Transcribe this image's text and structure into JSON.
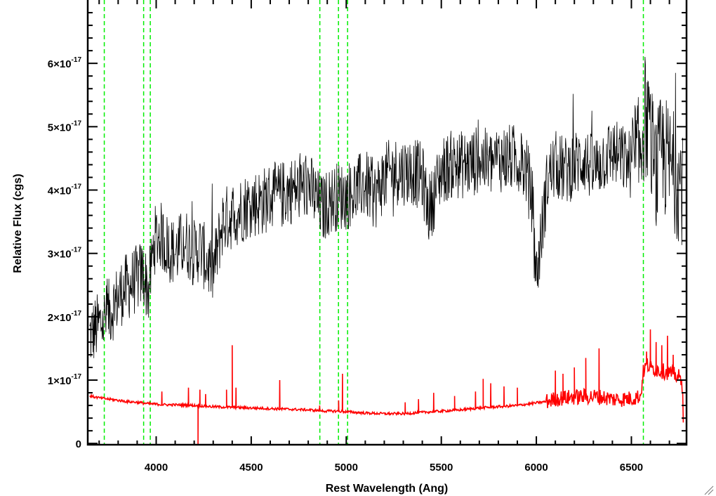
{
  "chart_data": {
    "type": "line",
    "title": "",
    "xlabel": "Rest Wavelength (Ang)",
    "ylabel": "Relative Flux (cgs)",
    "xlim": [
      3640,
      6790
    ],
    "ylim": [
      -2e-19,
      7e-17
    ],
    "x_ticks": [
      {
        "value": 4000,
        "label": "4000"
      },
      {
        "value": 4500,
        "label": "4500"
      },
      {
        "value": 5000,
        "label": "5000"
      },
      {
        "value": 5500,
        "label": "5500"
      },
      {
        "value": 6000,
        "label": "6000"
      },
      {
        "value": 6500,
        "label": "6500"
      }
    ],
    "y_ticks": [
      {
        "value": 0,
        "label": "0"
      },
      {
        "value": 1e-17,
        "label": "1×10",
        "exp": "-17"
      },
      {
        "value": 2e-17,
        "label": "2×10",
        "exp": "-17"
      },
      {
        "value": 3e-17,
        "label": "3×10",
        "exp": "-17"
      },
      {
        "value": 4e-17,
        "label": "4×10",
        "exp": "-17"
      },
      {
        "value": 5e-17,
        "label": "5×10",
        "exp": "-17"
      },
      {
        "value": 6e-17,
        "label": "6×10",
        "exp": "-17"
      }
    ],
    "grid": false,
    "series": [
      {
        "color": "#000000",
        "description": "observed spectrum (noisy)",
        "x": [
          3650,
          3680,
          3710,
          3740,
          3780,
          3820,
          3860,
          3900,
          3930,
          3960,
          3990,
          4020,
          4060,
          4100,
          4150,
          4200,
          4230,
          4260,
          4300,
          4350,
          4400,
          4450,
          4500,
          4550,
          4600,
          4650,
          4700,
          4750,
          4800,
          4850,
          4880,
          4900,
          4950,
          5000,
          5050,
          5100,
          5150,
          5200,
          5250,
          5300,
          5350,
          5400,
          5430,
          5450,
          5500,
          5550,
          5600,
          5650,
          5700,
          5750,
          5800,
          5850,
          5900,
          5950,
          5980,
          6000,
          6030,
          6060,
          6100,
          6150,
          6200,
          6250,
          6300,
          6350,
          6400,
          6450,
          6500,
          6540,
          6570,
          6600,
          6630,
          6660,
          6700,
          6740,
          6770
        ],
        "y": [
          1.7e-17,
          1.8e-17,
          1.9e-17,
          2e-17,
          2.2e-17,
          2.4e-17,
          2.5e-17,
          2.6e-17,
          2.7e-17,
          2.4e-17,
          3.2e-17,
          3.3e-17,
          3.1e-17,
          3e-17,
          3.2e-17,
          3e-17,
          3.1e-17,
          2.9e-17,
          2.7e-17,
          3.5e-17,
          3.6e-17,
          3.7e-17,
          3.8e-17,
          3.8e-17,
          3.9e-17,
          3.9e-17,
          4e-17,
          4e-17,
          4.1e-17,
          3.8e-17,
          3.7e-17,
          3.8e-17,
          3.9e-17,
          3.9e-17,
          4e-17,
          4.1e-17,
          3.9e-17,
          4.2e-17,
          4.3e-17,
          4.3e-17,
          4.3e-17,
          4.2e-17,
          3.7e-17,
          3.8e-17,
          4.3e-17,
          4.4e-17,
          4.4e-17,
          4.4e-17,
          4.5e-17,
          4.4e-17,
          4.5e-17,
          4.5e-17,
          4.5e-17,
          4.3e-17,
          3.8e-17,
          2.6e-17,
          3.4e-17,
          4.2e-17,
          4.4e-17,
          4.3e-17,
          4.4e-17,
          4.5e-17,
          4.3e-17,
          4.5e-17,
          4.6e-17,
          4.5e-17,
          4.4e-17,
          4.5e-17,
          5.2e-17,
          4.8e-17,
          4.2e-17,
          4.6e-17,
          4.4e-17,
          4.2e-17,
          4.1e-17
        ],
        "noise_amp": 5.5e-18
      },
      {
        "color": "#ff0000",
        "description": "error spectrum",
        "x": [
          3650,
          3700,
          3750,
          3800,
          3850,
          3900,
          3950,
          4000,
          4050,
          4100,
          4200,
          4300,
          4400,
          4500,
          4600,
          4700,
          4800,
          4850,
          4900,
          4950,
          5000,
          5050,
          5100,
          5200,
          5300,
          5400,
          5500,
          5600,
          5700,
          5800,
          5900,
          5950,
          6000,
          6050,
          6100,
          6150,
          6200,
          6250,
          6300,
          6350,
          6400,
          6450,
          6500,
          6550,
          6560,
          6580,
          6600,
          6650,
          6700,
          6750,
          6770,
          6775
        ],
        "y": [
          7.5e-18,
          7.2e-18,
          7e-18,
          6.8e-18,
          6.6e-18,
          6.5e-18,
          6.3e-18,
          6.2e-18,
          6.1e-18,
          6.1e-18,
          6e-18,
          5.8e-18,
          5.7e-18,
          5.6e-18,
          5.5e-18,
          5.4e-18,
          5.3e-18,
          5.2e-18,
          5.1e-18,
          5.1e-18,
          5e-18,
          4.9e-18,
          4.8e-18,
          4.7e-18,
          4.7e-18,
          4.9e-18,
          5.1e-18,
          5.3e-18,
          5.6e-18,
          5.8e-18,
          6e-18,
          6.2e-18,
          6.4e-18,
          6.6e-18,
          7e-18,
          7.2e-18,
          7.3e-18,
          7.4e-18,
          7.4e-18,
          7.3e-18,
          7e-18,
          7e-18,
          7.1e-18,
          7.5e-18,
          1.1e-17,
          1.25e-17,
          1.2e-17,
          1.15e-17,
          1.12e-17,
          1.05e-17,
          9e-18,
          -2e-19
        ],
        "spikes": [
          {
            "x": 4030,
            "y": 8.2e-18
          },
          {
            "x": 4170,
            "y": 8.8e-18
          },
          {
            "x": 4220,
            "y": -2e-19
          },
          {
            "x": 4230,
            "y": 8.5e-18
          },
          {
            "x": 4260,
            "y": 7.8e-18
          },
          {
            "x": 4370,
            "y": 8.5e-18
          },
          {
            "x": 4400,
            "y": 1.55e-17
          },
          {
            "x": 4420,
            "y": 8.8e-18
          },
          {
            "x": 4650,
            "y": 1e-17
          },
          {
            "x": 4860,
            "y": 6e-18
          },
          {
            "x": 4960,
            "y": 6.8e-18
          },
          {
            "x": 4980,
            "y": 1.1e-17
          },
          {
            "x": 5310,
            "y": 6.5e-18
          },
          {
            "x": 5380,
            "y": 7e-18
          },
          {
            "x": 5460,
            "y": 8e-18
          },
          {
            "x": 5570,
            "y": 7.5e-18
          },
          {
            "x": 5680,
            "y": 8.2e-18
          },
          {
            "x": 5720,
            "y": 1.02e-17
          },
          {
            "x": 5760,
            "y": 9.5e-18
          },
          {
            "x": 5830,
            "y": 9e-18
          },
          {
            "x": 5900,
            "y": 8.8e-18
          },
          {
            "x": 6100,
            "y": 1.15e-17
          },
          {
            "x": 6140,
            "y": 1.1e-17
          },
          {
            "x": 6200,
            "y": 1.2e-17
          },
          {
            "x": 6260,
            "y": 1.35e-17
          },
          {
            "x": 6330,
            "y": 1.5e-17
          },
          {
            "x": 6580,
            "y": 1.45e-17
          },
          {
            "x": 6600,
            "y": 1.8e-17
          },
          {
            "x": 6630,
            "y": 1.6e-17
          },
          {
            "x": 6660,
            "y": 1.55e-17
          },
          {
            "x": 6690,
            "y": 1.7e-17
          },
          {
            "x": 6720,
            "y": 1.4e-17
          }
        ]
      }
    ],
    "vlines": {
      "color": "#00ee00",
      "style": "dashed",
      "x": [
        3727,
        3934,
        3969,
        4861,
        4959,
        5007,
        6563
      ]
    }
  }
}
